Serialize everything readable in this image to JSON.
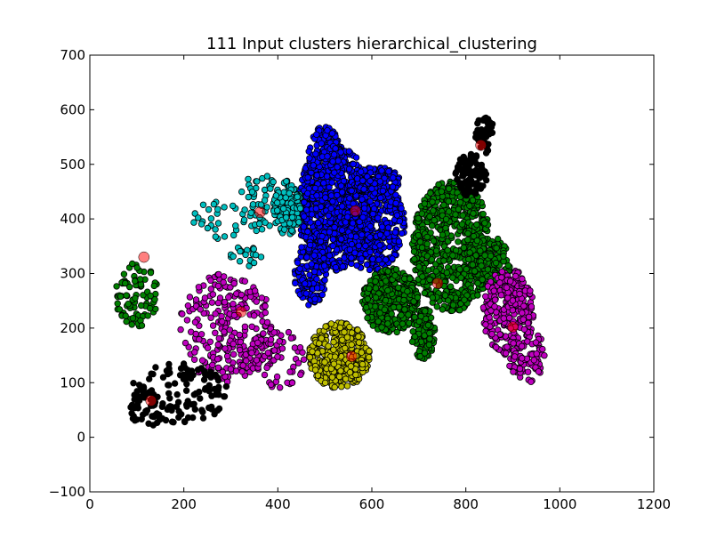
{
  "chart_data": {
    "type": "scatter",
    "title": "111 Input clusters hierarchical_clustering",
    "xlabel": "",
    "ylabel": "",
    "xlim": [
      0,
      1200
    ],
    "ylim": [
      -100,
      700
    ],
    "xticks": [
      0,
      200,
      400,
      600,
      800,
      1000,
      1200
    ],
    "yticks": [
      -100,
      0,
      100,
      200,
      300,
      400,
      500,
      600,
      700
    ],
    "grid": false,
    "legend": "none",
    "clusters": [
      {
        "color": "#0000ff",
        "center": [
          565,
          415
        ],
        "blobs": [
          {
            "cx": 520,
            "cy": 420,
            "rx": 80,
            "ry": 115,
            "n": 700
          },
          {
            "cx": 600,
            "cy": 390,
            "rx": 70,
            "ry": 85,
            "n": 450
          },
          {
            "cx": 500,
            "cy": 520,
            "rx": 35,
            "ry": 50,
            "n": 140
          },
          {
            "cx": 610,
            "cy": 470,
            "rx": 50,
            "ry": 25,
            "n": 130
          },
          {
            "cx": 470,
            "cy": 300,
            "rx": 35,
            "ry": 60,
            "n": 140
          }
        ]
      },
      {
        "color": "#00bfbf",
        "center": [
          362,
          412
        ],
        "blobs": [
          {
            "cx": 420,
            "cy": 420,
            "rx": 30,
            "ry": 50,
            "n": 130
          },
          {
            "cx": 360,
            "cy": 430,
            "rx": 45,
            "ry": 55,
            "n": 55
          },
          {
            "cx": 280,
            "cy": 400,
            "rx": 60,
            "ry": 40,
            "n": 25
          },
          {
            "cx": 330,
            "cy": 330,
            "rx": 35,
            "ry": 20,
            "n": 20
          }
        ]
      },
      {
        "color": "#008000",
        "center": [
          740,
          282
        ],
        "blobs": [
          {
            "cx": 770,
            "cy": 350,
            "rx": 85,
            "ry": 120,
            "n": 650
          },
          {
            "cx": 640,
            "cy": 250,
            "rx": 60,
            "ry": 60,
            "n": 350
          },
          {
            "cx": 850,
            "cy": 320,
            "rx": 45,
            "ry": 50,
            "n": 160
          },
          {
            "cx": 710,
            "cy": 190,
            "rx": 25,
            "ry": 50,
            "n": 100
          },
          {
            "cx": 100,
            "cy": 260,
            "rx": 45,
            "ry": 60,
            "n": 85
          }
        ]
      },
      {
        "color": "#bf00bf",
        "center": [
          900,
          202
        ],
        "blobs": [
          {
            "cx": 890,
            "cy": 230,
            "rx": 55,
            "ry": 80,
            "n": 260
          },
          {
            "cx": 930,
            "cy": 150,
            "rx": 40,
            "ry": 50,
            "n": 80
          },
          {
            "cx": 290,
            "cy": 200,
            "rx": 100,
            "ry": 100,
            "n": 240
          },
          {
            "cx": 400,
            "cy": 150,
            "rx": 60,
            "ry": 60,
            "n": 70
          }
        ]
      },
      {
        "color": "#bfbf00",
        "center": [
          557,
          148
        ],
        "blobs": [
          {
            "cx": 530,
            "cy": 150,
            "rx": 65,
            "ry": 60,
            "n": 420
          }
        ]
      },
      {
        "color": "#000000",
        "center": [
          832,
          535
        ],
        "blobs": [
          {
            "cx": 810,
            "cy": 480,
            "rx": 35,
            "ry": 40,
            "n": 90
          },
          {
            "cx": 840,
            "cy": 555,
            "rx": 20,
            "ry": 35,
            "n": 40
          },
          {
            "cx": 190,
            "cy": 80,
            "rx": 110,
            "ry": 55,
            "n": 120
          },
          {
            "cx": 120,
            "cy": 50,
            "rx": 35,
            "ry": 35,
            "n": 30
          }
        ]
      }
    ],
    "extra_centers": [
      [
        115,
        330
      ],
      [
        322,
        230
      ],
      [
        130,
        67
      ]
    ]
  }
}
